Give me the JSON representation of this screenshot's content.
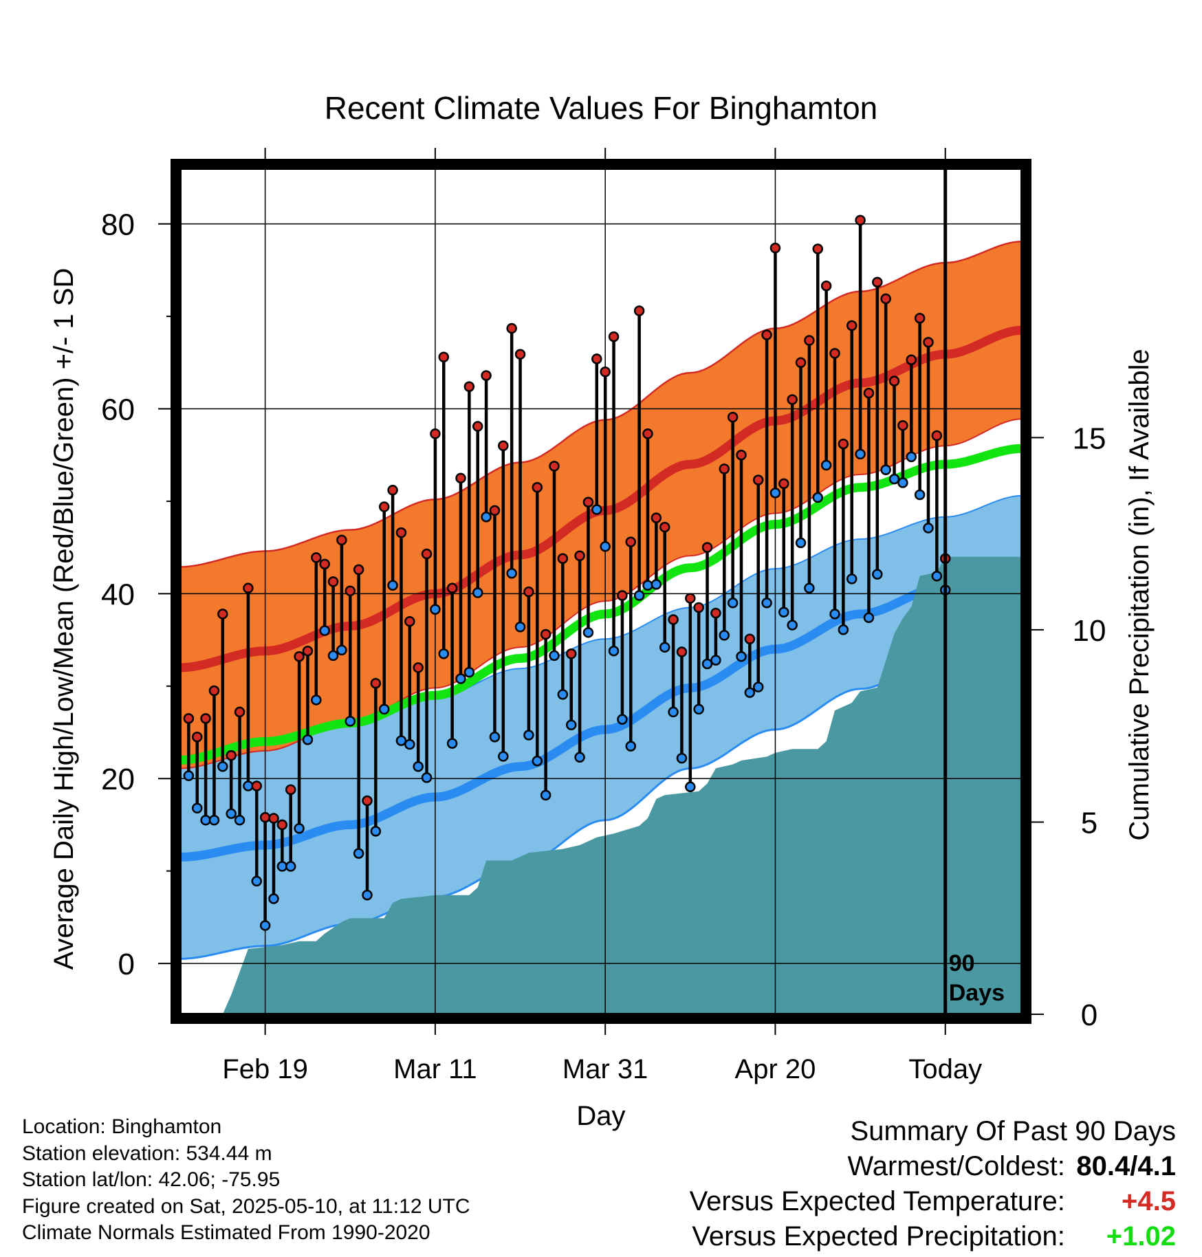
{
  "title": "Recent Climate Values For Binghamton",
  "chart_data": {
    "type": "line",
    "title": "Recent Climate Values For Binghamton",
    "xlabel": "Day",
    "ylabel": "Average Daily High/Low/Mean (Red/Blue/Green) +/- 1 SD",
    "y2label": "Cumulative Precipitation (in), If Available",
    "ylim": [
      -5.5,
      86
    ],
    "y2lim": [
      0,
      22
    ],
    "y_ticks": [
      "0",
      "20",
      "40",
      "60",
      "80"
    ],
    "y2_ticks": [
      "0",
      "5",
      "10",
      "15"
    ],
    "x_days": [
      -90,
      9
    ],
    "x_ticks": [
      {
        "day": -80,
        "label": "Feb 19"
      },
      {
        "day": -60,
        "label": "Mar 11"
      },
      {
        "day": -40,
        "label": "Mar 31"
      },
      {
        "day": -20,
        "label": "Apr 20"
      },
      {
        "day": 0,
        "label": "Today"
      }
    ],
    "today_marker": {
      "day": 0,
      "label_line1": "90",
      "label_line2": "Days"
    },
    "colors": {
      "high_band": "#f37a2d",
      "high_mean": "#d42a24",
      "low_band": "#80c0e8",
      "low_mean": "#2a8cf0",
      "mean_line": "#11e411",
      "precip": "#4a99a2",
      "high_dot": "#d42a24",
      "low_dot": "#2a8cf0"
    },
    "normal_high": [
      [
        -90,
        32.0
      ],
      [
        -80,
        33.8
      ],
      [
        -70,
        36.5
      ],
      [
        -60,
        40.0
      ],
      [
        -50,
        44.2
      ],
      [
        -40,
        49.0
      ],
      [
        -30,
        54.0
      ],
      [
        -20,
        58.7
      ],
      [
        -10,
        62.8
      ],
      [
        0,
        65.9
      ],
      [
        9,
        68.5
      ]
    ],
    "normal_low": [
      [
        -90,
        11.5
      ],
      [
        -80,
        12.8
      ],
      [
        -70,
        15.0
      ],
      [
        -60,
        18.0
      ],
      [
        -50,
        21.3
      ],
      [
        -40,
        25.3
      ],
      [
        -30,
        29.8
      ],
      [
        -20,
        34.0
      ],
      [
        -10,
        37.8
      ],
      [
        0,
        40.8
      ],
      [
        9,
        43.3
      ]
    ],
    "normal_mean": [
      [
        -90,
        22.0
      ],
      [
        -80,
        24.0
      ],
      [
        -70,
        26.0
      ],
      [
        -60,
        29.0
      ],
      [
        -50,
        33.0
      ],
      [
        -40,
        37.8
      ],
      [
        -30,
        42.8
      ],
      [
        -20,
        47.5
      ],
      [
        -10,
        51.5
      ],
      [
        0,
        54.0
      ],
      [
        9,
        55.7
      ]
    ],
    "sd_high": [
      [
        -90,
        10.9
      ],
      [
        -80,
        10.8
      ],
      [
        -70,
        10.4
      ],
      [
        -60,
        10.2
      ],
      [
        -50,
        10.0
      ],
      [
        -40,
        9.8
      ],
      [
        -30,
        9.9
      ],
      [
        -20,
        10.0
      ],
      [
        -10,
        9.9
      ],
      [
        0,
        9.9
      ],
      [
        9,
        9.6
      ]
    ],
    "sd_low": [
      [
        -90,
        11.0
      ],
      [
        -80,
        10.9
      ],
      [
        -70,
        10.7
      ],
      [
        -60,
        10.8
      ],
      [
        -50,
        10.6
      ],
      [
        -40,
        9.8
      ],
      [
        -30,
        8.7
      ],
      [
        -20,
        8.7
      ],
      [
        -10,
        8.1
      ],
      [
        0,
        7.5
      ],
      [
        9,
        7.3
      ]
    ],
    "daily": [
      {
        "day": -89,
        "high": 26.5,
        "low": 20.3
      },
      {
        "day": -88,
        "high": 24.5,
        "low": 16.8
      },
      {
        "day": -87,
        "high": 26.5,
        "low": 15.5
      },
      {
        "day": -86,
        "high": 29.5,
        "low": 15.5
      },
      {
        "day": -85,
        "high": 37.8,
        "low": 21.3
      },
      {
        "day": -84,
        "high": 22.5,
        "low": 16.2
      },
      {
        "day": -83,
        "high": 27.2,
        "low": 15.5
      },
      {
        "day": -82,
        "high": 40.6,
        "low": 19.2
      },
      {
        "day": -81,
        "high": 19.2,
        "low": 8.9
      },
      {
        "day": -80,
        "high": 15.8,
        "low": 4.1
      },
      {
        "day": -79,
        "high": 15.7,
        "low": 7.0
      },
      {
        "day": -78,
        "high": 15.0,
        "low": 10.5
      },
      {
        "day": -77,
        "high": 18.8,
        "low": 10.5
      },
      {
        "day": -76,
        "high": 33.2,
        "low": 14.6
      },
      {
        "day": -75,
        "high": 33.8,
        "low": 24.2
      },
      {
        "day": -74,
        "high": 43.9,
        "low": 28.5
      },
      {
        "day": -73,
        "high": 43.2,
        "low": 36.0
      },
      {
        "day": -72,
        "high": 41.3,
        "low": 33.3
      },
      {
        "day": -71,
        "high": 45.8,
        "low": 33.9
      },
      {
        "day": -70,
        "high": 40.3,
        "low": 26.2
      },
      {
        "day": -69,
        "high": 42.6,
        "low": 11.9
      },
      {
        "day": -68,
        "high": 17.6,
        "low": 7.4
      },
      {
        "day": -67,
        "high": 30.3,
        "low": 14.3
      },
      {
        "day": -66,
        "high": 49.4,
        "low": 27.5
      },
      {
        "day": -65,
        "high": 51.2,
        "low": 40.9
      },
      {
        "day": -64,
        "high": 46.6,
        "low": 24.1
      },
      {
        "day": -63,
        "high": 37.0,
        "low": 23.7
      },
      {
        "day": -62,
        "high": 32.0,
        "low": 21.3
      },
      {
        "day": -61,
        "high": 44.3,
        "low": 20.1
      },
      {
        "day": -60,
        "high": 57.3,
        "low": 38.3
      },
      {
        "day": -59,
        "high": 65.6,
        "low": 33.5
      },
      {
        "day": -58,
        "high": 40.6,
        "low": 23.8
      },
      {
        "day": -57,
        "high": 52.5,
        "low": 30.8
      },
      {
        "day": -56,
        "high": 62.4,
        "low": 31.5
      },
      {
        "day": -55,
        "high": 58.1,
        "low": 40.1
      },
      {
        "day": -54,
        "high": 63.6,
        "low": 48.3
      },
      {
        "day": -53,
        "high": 49.0,
        "low": 24.5
      },
      {
        "day": -52,
        "high": 56.0,
        "low": 22.4
      },
      {
        "day": -51,
        "high": 68.7,
        "low": 42.2
      },
      {
        "day": -50,
        "high": 65.9,
        "low": 36.4
      },
      {
        "day": -49,
        "high": 40.2,
        "low": 24.7
      },
      {
        "day": -48,
        "high": 51.5,
        "low": 21.9
      },
      {
        "day": -47,
        "high": 35.6,
        "low": 18.2
      },
      {
        "day": -46,
        "high": 53.8,
        "low": 33.3
      },
      {
        "day": -45,
        "high": 43.8,
        "low": 29.1
      },
      {
        "day": -44,
        "high": 33.5,
        "low": 25.8
      },
      {
        "day": -43,
        "high": 44.1,
        "low": 22.3
      },
      {
        "day": -42,
        "high": 49.9,
        "low": 35.8
      },
      {
        "day": -41,
        "high": 65.4,
        "low": 49.1
      },
      {
        "day": -40,
        "high": 64.0,
        "low": 45.1
      },
      {
        "day": -39,
        "high": 67.8,
        "low": 33.8
      },
      {
        "day": -38,
        "high": 39.8,
        "low": 26.4
      },
      {
        "day": -37,
        "high": 45.6,
        "low": 23.5
      },
      {
        "day": -36,
        "high": 70.6,
        "low": 39.8
      },
      {
        "day": -35,
        "high": 57.3,
        "low": 40.9
      },
      {
        "day": -34,
        "high": 48.2,
        "low": 41.0
      },
      {
        "day": -33,
        "high": 47.2,
        "low": 34.2
      },
      {
        "day": -32,
        "high": 37.2,
        "low": 27.2
      },
      {
        "day": -31,
        "high": 33.7,
        "low": 22.2
      },
      {
        "day": -30,
        "high": 39.5,
        "low": 19.1
      },
      {
        "day": -29,
        "high": 38.5,
        "low": 27.5
      },
      {
        "day": -28,
        "high": 45.0,
        "low": 32.4
      },
      {
        "day": -27,
        "high": 37.9,
        "low": 32.8
      },
      {
        "day": -26,
        "high": 53.5,
        "low": 35.5
      },
      {
        "day": -25,
        "high": 59.1,
        "low": 39.0
      },
      {
        "day": -24,
        "high": 55.0,
        "low": 33.2
      },
      {
        "day": -23,
        "high": 35.1,
        "low": 29.3
      },
      {
        "day": -22,
        "high": 52.3,
        "low": 29.9
      },
      {
        "day": -21,
        "high": 68.0,
        "low": 39.0
      },
      {
        "day": -20,
        "high": 77.4,
        "low": 50.9
      },
      {
        "day": -19,
        "high": 51.9,
        "low": 38.0
      },
      {
        "day": -18,
        "high": 61.0,
        "low": 36.6
      },
      {
        "day": -17,
        "high": 65.0,
        "low": 45.5
      },
      {
        "day": -16,
        "high": 67.4,
        "low": 40.6
      },
      {
        "day": -15,
        "high": 77.3,
        "low": 50.4
      },
      {
        "day": -14,
        "high": 73.3,
        "low": 53.9
      },
      {
        "day": -13,
        "high": 66.0,
        "low": 37.8
      },
      {
        "day": -12,
        "high": 56.2,
        "low": 36.1
      },
      {
        "day": -11,
        "high": 69.0,
        "low": 41.6
      },
      {
        "day": -10,
        "high": 80.4,
        "low": 55.1
      },
      {
        "day": -9,
        "high": 61.7,
        "low": 37.4
      },
      {
        "day": -8,
        "high": 73.7,
        "low": 42.1
      },
      {
        "day": -7,
        "high": 71.9,
        "low": 53.4
      },
      {
        "day": -6,
        "high": 63.0,
        "low": 52.4
      },
      {
        "day": -5,
        "high": 58.2,
        "low": 52.0
      },
      {
        "day": -4,
        "high": 65.3,
        "low": 54.8
      },
      {
        "day": -3,
        "high": 69.8,
        "low": 50.7
      },
      {
        "day": -2,
        "high": 67.2,
        "low": 47.1
      },
      {
        "day": -1,
        "high": 57.1,
        "low": 41.9
      },
      {
        "day": 0,
        "high": 43.8,
        "low": 40.4
      }
    ],
    "precip_cum": [
      {
        "day": -90,
        "value": 0
      },
      {
        "day": -85,
        "value": 0
      },
      {
        "day": -84,
        "value": 0.5
      },
      {
        "day": -83,
        "value": 1.1
      },
      {
        "day": -82,
        "value": 1.7
      },
      {
        "day": -78,
        "value": 1.8
      },
      {
        "day": -76,
        "value": 1.9
      },
      {
        "day": -74,
        "value": 1.9
      },
      {
        "day": -73,
        "value": 2.1
      },
      {
        "day": -71,
        "value": 2.4
      },
      {
        "day": -70,
        "value": 2.5
      },
      {
        "day": -66,
        "value": 2.5
      },
      {
        "day": -65,
        "value": 2.9
      },
      {
        "day": -64,
        "value": 3.0
      },
      {
        "day": -60,
        "value": 3.1
      },
      {
        "day": -56,
        "value": 3.1
      },
      {
        "day": -55,
        "value": 3.3
      },
      {
        "day": -54,
        "value": 4.0
      },
      {
        "day": -51,
        "value": 4.0
      },
      {
        "day": -49,
        "value": 4.2
      },
      {
        "day": -45,
        "value": 4.3
      },
      {
        "day": -43,
        "value": 4.4
      },
      {
        "day": -41,
        "value": 4.6
      },
      {
        "day": -39,
        "value": 4.7
      },
      {
        "day": -36,
        "value": 4.9
      },
      {
        "day": -35,
        "value": 5.1
      },
      {
        "day": -34,
        "value": 5.6
      },
      {
        "day": -33,
        "value": 5.7
      },
      {
        "day": -29,
        "value": 5.8
      },
      {
        "day": -28,
        "value": 6.0
      },
      {
        "day": -27,
        "value": 6.4
      },
      {
        "day": -25,
        "value": 6.5
      },
      {
        "day": -24,
        "value": 6.6
      },
      {
        "day": -21,
        "value": 6.7
      },
      {
        "day": -20,
        "value": 6.8
      },
      {
        "day": -18,
        "value": 6.9
      },
      {
        "day": -15,
        "value": 6.9
      },
      {
        "day": -14,
        "value": 7.1
      },
      {
        "day": -13,
        "value": 7.9
      },
      {
        "day": -11,
        "value": 8.1
      },
      {
        "day": -10,
        "value": 8.4
      },
      {
        "day": -8,
        "value": 8.5
      },
      {
        "day": -7,
        "value": 9.2
      },
      {
        "day": -6,
        "value": 9.9
      },
      {
        "day": -5,
        "value": 10.3
      },
      {
        "day": -4,
        "value": 10.6
      },
      {
        "day": -3,
        "value": 11.4
      },
      {
        "day": -1,
        "value": 11.5
      },
      {
        "day": 0,
        "value": 11.9
      },
      {
        "day": 9,
        "value": 11.9
      }
    ]
  },
  "info": {
    "location": "Location: Binghamton",
    "elevation": "Station elevation: 534.44 m",
    "latlon": "Station lat/lon: 42.06; -75.95",
    "created": "Figure created on Sat, 2025-05-10, at 11:12 UTC",
    "normals": "Climate Normals Estimated From 1990-2020"
  },
  "summary": {
    "title": "Summary Of Past 90 Days",
    "warmest_label": "Warmest/Coldest:",
    "warmest_value": "80.4/4.1",
    "temp_label": "Versus Expected Temperature:",
    "temp_value": "+4.5",
    "temp_color": "#d42a24",
    "precip_label": "Versus Expected Precipitation:",
    "precip_value": "+1.02",
    "precip_color": "#11dd11"
  }
}
